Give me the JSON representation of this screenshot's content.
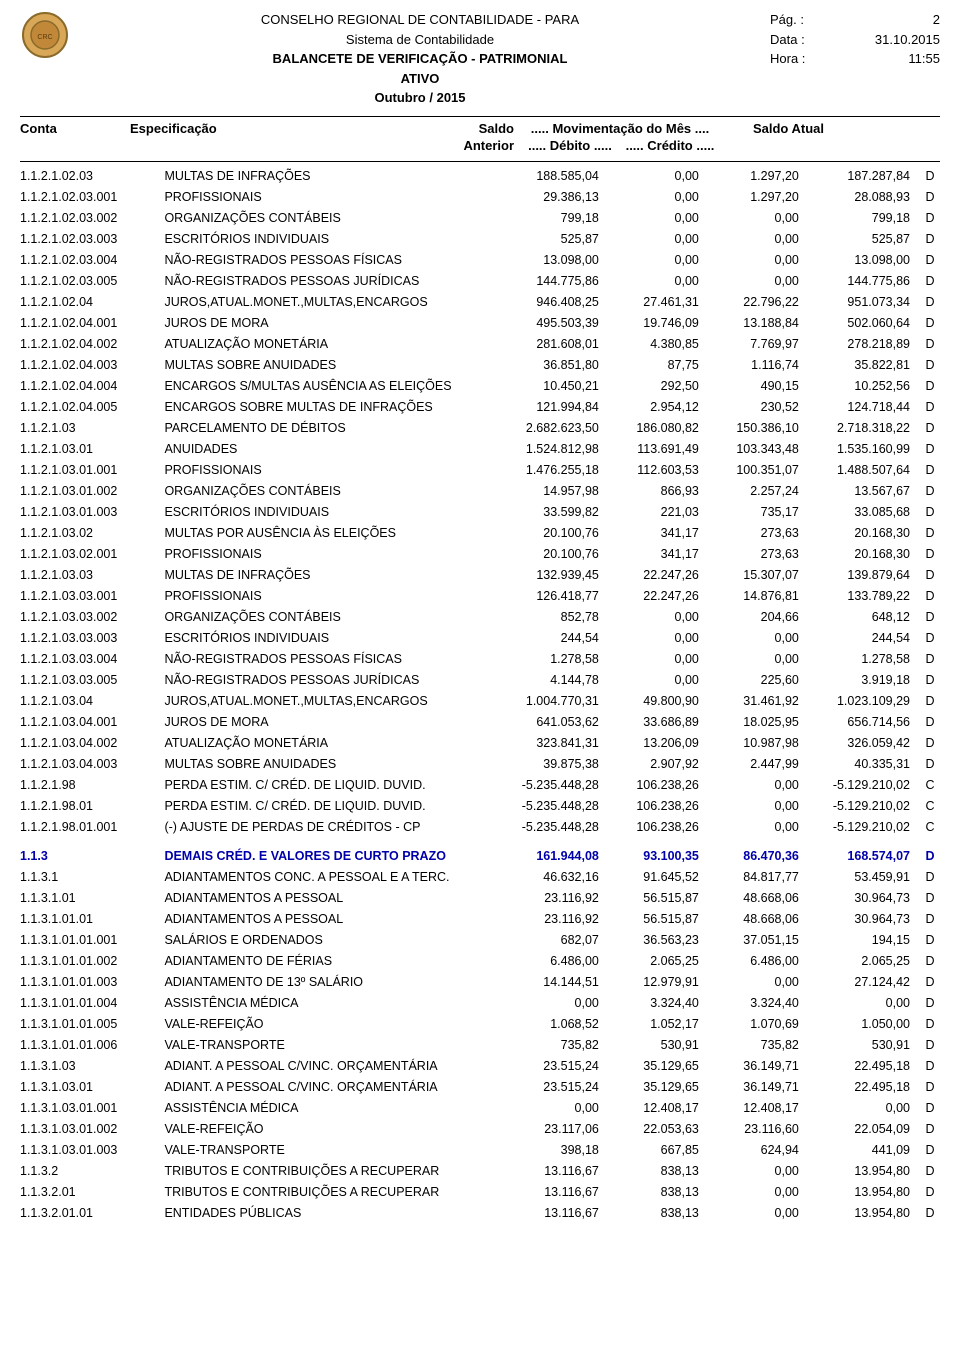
{
  "header": {
    "org": "CONSELHO REGIONAL DE CONTABILIDADE - PARA",
    "system": "Sistema de Contabilidade",
    "report_title": "BALANCETE DE VERIFICAÇÃO - PATRIMONIAL",
    "section": "ATIVO",
    "period": "Outubro / 2015",
    "page_label": "Pág. :",
    "page_value": "2",
    "date_label": "Data :",
    "date_value": "31.10.2015",
    "time_label": "Hora :",
    "time_value": "11:55"
  },
  "columns": {
    "conta": "Conta",
    "espec": "Especificação",
    "saldo": "Saldo",
    "mov": "..... Movimentação do Mês ....",
    "saldo_atual": "Saldo Atual",
    "anterior": "Anterior",
    "debito": "..... Débito .....",
    "credito": "..... Crédito ....."
  },
  "rows": [
    {
      "conta": "1.1.2.1.02.03",
      "espec": "MULTAS DE INFRAÇÕES",
      "ant": "188.585,04",
      "deb": "0,00",
      "cre": "1.297,20",
      "atu": "187.287,84",
      "dc": "D",
      "section": false
    },
    {
      "conta": "1.1.2.1.02.03.001",
      "espec": "PROFISSIONAIS",
      "ant": "29.386,13",
      "deb": "0,00",
      "cre": "1.297,20",
      "atu": "28.088,93",
      "dc": "D",
      "section": false
    },
    {
      "conta": "1.1.2.1.02.03.002",
      "espec": "ORGANIZAÇÕES CONTÁBEIS",
      "ant": "799,18",
      "deb": "0,00",
      "cre": "0,00",
      "atu": "799,18",
      "dc": "D",
      "section": false
    },
    {
      "conta": "1.1.2.1.02.03.003",
      "espec": "ESCRITÓRIOS INDIVIDUAIS",
      "ant": "525,87",
      "deb": "0,00",
      "cre": "0,00",
      "atu": "525,87",
      "dc": "D",
      "section": false
    },
    {
      "conta": "1.1.2.1.02.03.004",
      "espec": "NÃO-REGISTRADOS PESSOAS FÍSICAS",
      "ant": "13.098,00",
      "deb": "0,00",
      "cre": "0,00",
      "atu": "13.098,00",
      "dc": "D",
      "section": false
    },
    {
      "conta": "1.1.2.1.02.03.005",
      "espec": "NÃO-REGISTRADOS PESSOAS JURÍDICAS",
      "ant": "144.775,86",
      "deb": "0,00",
      "cre": "0,00",
      "atu": "144.775,86",
      "dc": "D",
      "section": false
    },
    {
      "conta": "1.1.2.1.02.04",
      "espec": "JUROS,ATUAL.MONET.,MULTAS,ENCARGOS",
      "ant": "946.408,25",
      "deb": "27.461,31",
      "cre": "22.796,22",
      "atu": "951.073,34",
      "dc": "D",
      "section": false
    },
    {
      "conta": "1.1.2.1.02.04.001",
      "espec": "JUROS DE MORA",
      "ant": "495.503,39",
      "deb": "19.746,09",
      "cre": "13.188,84",
      "atu": "502.060,64",
      "dc": "D",
      "section": false
    },
    {
      "conta": "1.1.2.1.02.04.002",
      "espec": "ATUALIZAÇÃO MONETÁRIA",
      "ant": "281.608,01",
      "deb": "4.380,85",
      "cre": "7.769,97",
      "atu": "278.218,89",
      "dc": "D",
      "section": false
    },
    {
      "conta": "1.1.2.1.02.04.003",
      "espec": "MULTAS SOBRE ANUIDADES",
      "ant": "36.851,80",
      "deb": "87,75",
      "cre": "1.116,74",
      "atu": "35.822,81",
      "dc": "D",
      "section": false
    },
    {
      "conta": "1.1.2.1.02.04.004",
      "espec": "ENCARGOS S/MULTAS AUSÊNCIA AS ELEIÇÕES",
      "ant": "10.450,21",
      "deb": "292,50",
      "cre": "490,15",
      "atu": "10.252,56",
      "dc": "D",
      "section": false
    },
    {
      "conta": "1.1.2.1.02.04.005",
      "espec": "ENCARGOS SOBRE MULTAS DE INFRAÇÕES",
      "ant": "121.994,84",
      "deb": "2.954,12",
      "cre": "230,52",
      "atu": "124.718,44",
      "dc": "D",
      "section": false
    },
    {
      "conta": "1.1.2.1.03",
      "espec": "PARCELAMENTO DE DÉBITOS",
      "ant": "2.682.623,50",
      "deb": "186.080,82",
      "cre": "150.386,10",
      "atu": "2.718.318,22",
      "dc": "D",
      "section": false
    },
    {
      "conta": "1.1.2.1.03.01",
      "espec": "ANUIDADES",
      "ant": "1.524.812,98",
      "deb": "113.691,49",
      "cre": "103.343,48",
      "atu": "1.535.160,99",
      "dc": "D",
      "section": false
    },
    {
      "conta": "1.1.2.1.03.01.001",
      "espec": "PROFISSIONAIS",
      "ant": "1.476.255,18",
      "deb": "112.603,53",
      "cre": "100.351,07",
      "atu": "1.488.507,64",
      "dc": "D",
      "section": false
    },
    {
      "conta": "1.1.2.1.03.01.002",
      "espec": "ORGANIZAÇÕES CONTÁBEIS",
      "ant": "14.957,98",
      "deb": "866,93",
      "cre": "2.257,24",
      "atu": "13.567,67",
      "dc": "D",
      "section": false
    },
    {
      "conta": "1.1.2.1.03.01.003",
      "espec": "ESCRITÓRIOS INDIVIDUAIS",
      "ant": "33.599,82",
      "deb": "221,03",
      "cre": "735,17",
      "atu": "33.085,68",
      "dc": "D",
      "section": false
    },
    {
      "conta": "1.1.2.1.03.02",
      "espec": "MULTAS POR AUSÊNCIA ÀS ELEIÇÕES",
      "ant": "20.100,76",
      "deb": "341,17",
      "cre": "273,63",
      "atu": "20.168,30",
      "dc": "D",
      "section": false
    },
    {
      "conta": "1.1.2.1.03.02.001",
      "espec": "PROFISSIONAIS",
      "ant": "20.100,76",
      "deb": "341,17",
      "cre": "273,63",
      "atu": "20.168,30",
      "dc": "D",
      "section": false
    },
    {
      "conta": "1.1.2.1.03.03",
      "espec": "MULTAS DE INFRAÇÕES",
      "ant": "132.939,45",
      "deb": "22.247,26",
      "cre": "15.307,07",
      "atu": "139.879,64",
      "dc": "D",
      "section": false
    },
    {
      "conta": "1.1.2.1.03.03.001",
      "espec": "PROFISSIONAIS",
      "ant": "126.418,77",
      "deb": "22.247,26",
      "cre": "14.876,81",
      "atu": "133.789,22",
      "dc": "D",
      "section": false
    },
    {
      "conta": "1.1.2.1.03.03.002",
      "espec": "ORGANIZAÇÕES CONTÁBEIS",
      "ant": "852,78",
      "deb": "0,00",
      "cre": "204,66",
      "atu": "648,12",
      "dc": "D",
      "section": false
    },
    {
      "conta": "1.1.2.1.03.03.003",
      "espec": "ESCRITÓRIOS INDIVIDUAIS",
      "ant": "244,54",
      "deb": "0,00",
      "cre": "0,00",
      "atu": "244,54",
      "dc": "D",
      "section": false
    },
    {
      "conta": "1.1.2.1.03.03.004",
      "espec": "NÃO-REGISTRADOS PESSOAS FÍSICAS",
      "ant": "1.278,58",
      "deb": "0,00",
      "cre": "0,00",
      "atu": "1.278,58",
      "dc": "D",
      "section": false
    },
    {
      "conta": "1.1.2.1.03.03.005",
      "espec": "NÃO-REGISTRADOS PESSOAS JURÍDICAS",
      "ant": "4.144,78",
      "deb": "0,00",
      "cre": "225,60",
      "atu": "3.919,18",
      "dc": "D",
      "section": false
    },
    {
      "conta": "1.1.2.1.03.04",
      "espec": "JUROS,ATUAL.MONET.,MULTAS,ENCARGOS",
      "ant": "1.004.770,31",
      "deb": "49.800,90",
      "cre": "31.461,92",
      "atu": "1.023.109,29",
      "dc": "D",
      "section": false
    },
    {
      "conta": "1.1.2.1.03.04.001",
      "espec": "JUROS DE MORA",
      "ant": "641.053,62",
      "deb": "33.686,89",
      "cre": "18.025,95",
      "atu": "656.714,56",
      "dc": "D",
      "section": false
    },
    {
      "conta": "1.1.2.1.03.04.002",
      "espec": "ATUALIZAÇÃO MONETÁRIA",
      "ant": "323.841,31",
      "deb": "13.206,09",
      "cre": "10.987,98",
      "atu": "326.059,42",
      "dc": "D",
      "section": false
    },
    {
      "conta": "1.1.2.1.03.04.003",
      "espec": "MULTAS SOBRE ANUIDADES",
      "ant": "39.875,38",
      "deb": "2.907,92",
      "cre": "2.447,99",
      "atu": "40.335,31",
      "dc": "D",
      "section": false
    },
    {
      "conta": "1.1.2.1.98",
      "espec": "PERDA ESTIM. C/ CRÉD. DE LIQUID. DUVID.",
      "ant": "-5.235.448,28",
      "deb": "106.238,26",
      "cre": "0,00",
      "atu": "-5.129.210,02",
      "dc": "C",
      "section": false
    },
    {
      "conta": "1.1.2.1.98.01",
      "espec": "PERDA ESTIM. C/ CRÉD. DE LIQUID. DUVID.",
      "ant": "-5.235.448,28",
      "deb": "106.238,26",
      "cre": "0,00",
      "atu": "-5.129.210,02",
      "dc": "C",
      "section": false
    },
    {
      "conta": "1.1.2.1.98.01.001",
      "espec": "(-) AJUSTE DE PERDAS DE CRÉDITOS - CP",
      "ant": "-5.235.448,28",
      "deb": "106.238,26",
      "cre": "0,00",
      "atu": "-5.129.210,02",
      "dc": "C",
      "section": false
    },
    {
      "spacer": true
    },
    {
      "conta": "1.1.3",
      "espec": "DEMAIS CRÉD. E VALORES DE CURTO PRAZO",
      "ant": "161.944,08",
      "deb": "93.100,35",
      "cre": "86.470,36",
      "atu": "168.574,07",
      "dc": "D",
      "section": true
    },
    {
      "conta": "1.1.3.1",
      "espec": "ADIANTAMENTOS CONC. A PESSOAL E A TERC.",
      "ant": "46.632,16",
      "deb": "91.645,52",
      "cre": "84.817,77",
      "atu": "53.459,91",
      "dc": "D",
      "section": false
    },
    {
      "conta": "1.1.3.1.01",
      "espec": "ADIANTAMENTOS A PESSOAL",
      "ant": "23.116,92",
      "deb": "56.515,87",
      "cre": "48.668,06",
      "atu": "30.964,73",
      "dc": "D",
      "section": false
    },
    {
      "conta": "1.1.3.1.01.01",
      "espec": "ADIANTAMENTOS A PESSOAL",
      "ant": "23.116,92",
      "deb": "56.515,87",
      "cre": "48.668,06",
      "atu": "30.964,73",
      "dc": "D",
      "section": false
    },
    {
      "conta": "1.1.3.1.01.01.001",
      "espec": "SALÁRIOS E ORDENADOS",
      "ant": "682,07",
      "deb": "36.563,23",
      "cre": "37.051,15",
      "atu": "194,15",
      "dc": "D",
      "section": false
    },
    {
      "conta": "1.1.3.1.01.01.002",
      "espec": "ADIANTAMENTO DE FÉRIAS",
      "ant": "6.486,00",
      "deb": "2.065,25",
      "cre": "6.486,00",
      "atu": "2.065,25",
      "dc": "D",
      "section": false
    },
    {
      "conta": "1.1.3.1.01.01.003",
      "espec": "ADIANTAMENTO DE 13º SALÁRIO",
      "ant": "14.144,51",
      "deb": "12.979,91",
      "cre": "0,00",
      "atu": "27.124,42",
      "dc": "D",
      "section": false
    },
    {
      "conta": "1.1.3.1.01.01.004",
      "espec": "ASSISTÊNCIA MÉDICA",
      "ant": "0,00",
      "deb": "3.324,40",
      "cre": "3.324,40",
      "atu": "0,00",
      "dc": "D",
      "section": false
    },
    {
      "conta": "1.1.3.1.01.01.005",
      "espec": "VALE-REFEIÇÃO",
      "ant": "1.068,52",
      "deb": "1.052,17",
      "cre": "1.070,69",
      "atu": "1.050,00",
      "dc": "D",
      "section": false
    },
    {
      "conta": "1.1.3.1.01.01.006",
      "espec": "VALE-TRANSPORTE",
      "ant": "735,82",
      "deb": "530,91",
      "cre": "735,82",
      "atu": "530,91",
      "dc": "D",
      "section": false
    },
    {
      "conta": "1.1.3.1.03",
      "espec": "ADIANT. A PESSOAL C/VINC. ORÇAMENTÁRIA",
      "ant": "23.515,24",
      "deb": "35.129,65",
      "cre": "36.149,71",
      "atu": "22.495,18",
      "dc": "D",
      "section": false
    },
    {
      "conta": "1.1.3.1.03.01",
      "espec": "ADIANT. A PESSOAL C/VINC. ORÇAMENTÁRIA",
      "ant": "23.515,24",
      "deb": "35.129,65",
      "cre": "36.149,71",
      "atu": "22.495,18",
      "dc": "D",
      "section": false
    },
    {
      "conta": "1.1.3.1.03.01.001",
      "espec": "ASSISTÊNCIA MÉDICA",
      "ant": "0,00",
      "deb": "12.408,17",
      "cre": "12.408,17",
      "atu": "0,00",
      "dc": "D",
      "section": false
    },
    {
      "conta": "1.1.3.1.03.01.002",
      "espec": "VALE-REFEIÇÃO",
      "ant": "23.117,06",
      "deb": "22.053,63",
      "cre": "23.116,60",
      "atu": "22.054,09",
      "dc": "D",
      "section": false
    },
    {
      "conta": "1.1.3.1.03.01.003",
      "espec": "VALE-TRANSPORTE",
      "ant": "398,18",
      "deb": "667,85",
      "cre": "624,94",
      "atu": "441,09",
      "dc": "D",
      "section": false
    },
    {
      "conta": "1.1.3.2",
      "espec": "TRIBUTOS E CONTRIBUIÇÕES A RECUPERAR",
      "ant": "13.116,67",
      "deb": "838,13",
      "cre": "0,00",
      "atu": "13.954,80",
      "dc": "D",
      "section": false
    },
    {
      "conta": "1.1.3.2.01",
      "espec": "TRIBUTOS E CONTRIBUIÇÕES A RECUPERAR",
      "ant": "13.116,67",
      "deb": "838,13",
      "cre": "0,00",
      "atu": "13.954,80",
      "dc": "D",
      "section": false
    },
    {
      "conta": "1.1.3.2.01.01",
      "espec": "ENTIDADES PÚBLICAS",
      "ant": "13.116,67",
      "deb": "838,13",
      "cre": "0,00",
      "atu": "13.954,80",
      "dc": "D",
      "section": false
    }
  ]
}
